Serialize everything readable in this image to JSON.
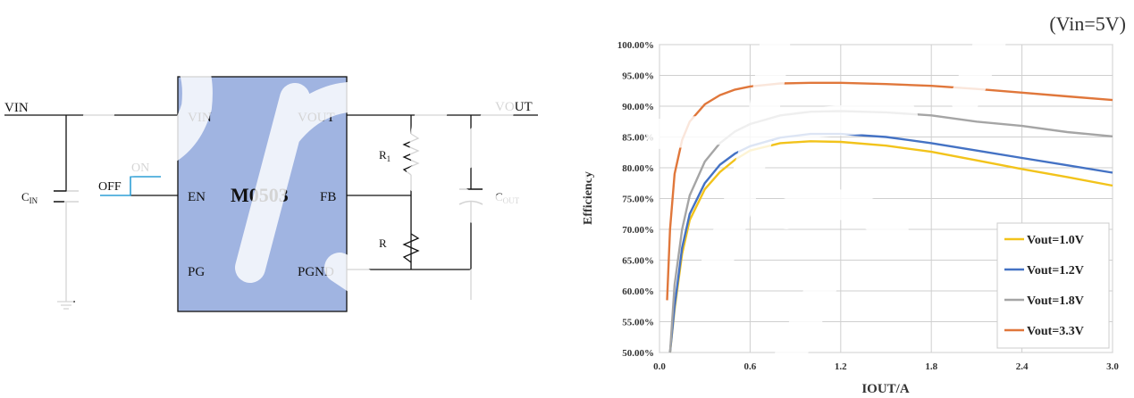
{
  "schematic": {
    "net_vin": "VIN",
    "net_vout": "VOUT",
    "cin_main": "C",
    "cin_sub": "IN",
    "cout_main": "C",
    "cout_sub": "OUT",
    "r1_main": "R",
    "r1_sub": "1",
    "r2_main": "R",
    "switch_on": "ON",
    "switch_off": "OFF",
    "chip": {
      "name": "M0503",
      "pin_vin": "VIN",
      "pin_en": "EN",
      "pin_pg": "PG",
      "pin_vout": "VOUT",
      "pin_fb": "FB",
      "pin_pgnd": "PGND",
      "fill_color": "#a0b4e1"
    }
  },
  "chart_data": {
    "type": "line",
    "note": "(Vin=5V)",
    "title": "",
    "xlabel": "IOUT/A",
    "ylabel": "Efficiency",
    "xlim": [
      0,
      3.0
    ],
    "ylim": [
      50,
      100
    ],
    "x_ticks": [
      "0.0",
      "0.6",
      "1.2",
      "1.8",
      "2.4",
      "3.0"
    ],
    "y_ticks": [
      "50.00%",
      "55.00%",
      "60.00%",
      "65.00%",
      "70.00%",
      "75.00%",
      "80.00%",
      "85.00%",
      "90.00%",
      "95.00%",
      "100.00%"
    ],
    "grid": true,
    "legend_position": "bottom-right",
    "series": [
      {
        "name": "Vout=1.0V",
        "color": "#f2c31b",
        "x": [
          0.07,
          0.1,
          0.15,
          0.2,
          0.3,
          0.4,
          0.5,
          0.6,
          0.8,
          1.0,
          1.2,
          1.5,
          1.8,
          2.1,
          2.4,
          2.7,
          3.0
        ],
        "y": [
          50,
          57,
          66,
          71.5,
          76.5,
          79.3,
          81.3,
          82.8,
          84.0,
          84.3,
          84.2,
          83.6,
          82.6,
          81.2,
          79.8,
          78.5,
          77.1
        ]
      },
      {
        "name": "Vout=1.2V",
        "color": "#4472c4",
        "x": [
          0.07,
          0.1,
          0.15,
          0.2,
          0.3,
          0.4,
          0.5,
          0.6,
          0.8,
          1.0,
          1.2,
          1.5,
          1.8,
          2.1,
          2.4,
          2.7,
          3.0
        ],
        "y": [
          50,
          57.5,
          67,
          72.5,
          77.5,
          80.5,
          82.3,
          83.5,
          84.9,
          85.5,
          85.5,
          85.0,
          84.0,
          82.8,
          81.6,
          80.4,
          79.2
        ]
      },
      {
        "name": "Vout=1.8V",
        "color": "#a5a5a5",
        "x": [
          0.07,
          0.1,
          0.15,
          0.2,
          0.3,
          0.4,
          0.5,
          0.6,
          0.8,
          1.0,
          1.2,
          1.5,
          1.8,
          2.1,
          2.4,
          2.7,
          3.0
        ],
        "y": [
          50,
          61,
          70,
          75.5,
          81,
          84,
          85.9,
          87.1,
          88.5,
          89.1,
          89.2,
          89.0,
          88.5,
          87.5,
          86.8,
          85.8,
          85.1
        ]
      },
      {
        "name": "Vout=3.3V",
        "color": "#e0773b",
        "x": [
          0.05,
          0.07,
          0.1,
          0.15,
          0.2,
          0.3,
          0.4,
          0.5,
          0.6,
          0.8,
          1.0,
          1.2,
          1.5,
          1.8,
          2.1,
          2.4,
          2.7,
          3.0
        ],
        "y": [
          58.5,
          70,
          79,
          84.5,
          87.5,
          90.3,
          91.8,
          92.7,
          93.2,
          93.7,
          93.8,
          93.8,
          93.6,
          93.3,
          92.8,
          92.2,
          91.6,
          91.0
        ]
      }
    ]
  }
}
